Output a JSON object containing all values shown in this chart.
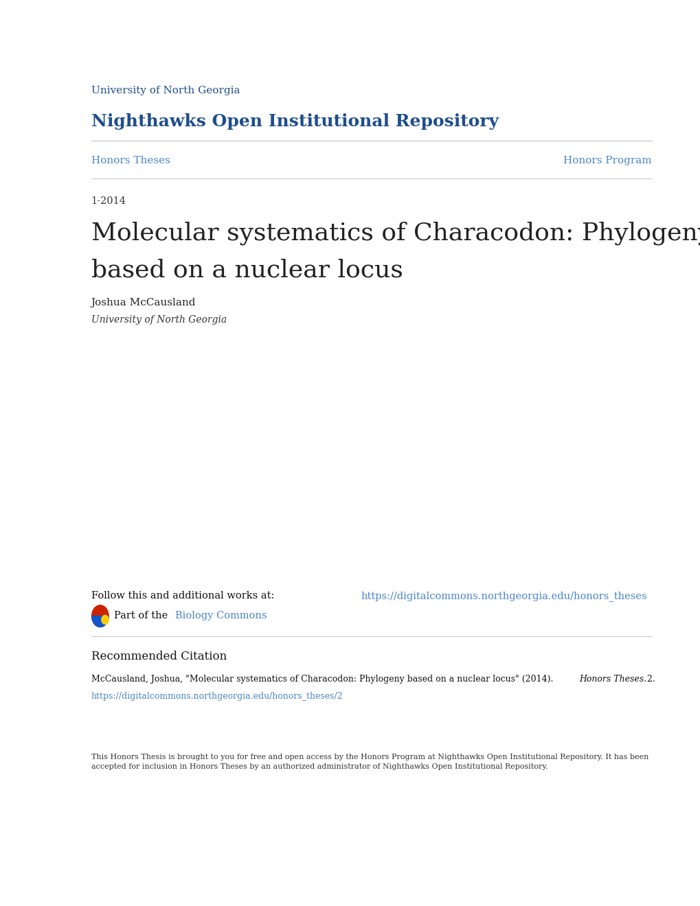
{
  "bg_color": "#ffffff",
  "header_line1": "University of North Georgia",
  "header_line2": "Nighthawks Open Institutional Repository",
  "header_color": "#1f4e8c",
  "nav_left": "Honors Theses",
  "nav_right": "Honors Program",
  "nav_color": "#4a86c8",
  "date": "1-2014",
  "title_line1": "Molecular systematics of Characodon: Phylogeny",
  "title_line2": "based on a nuclear locus",
  "title_color": "#222222",
  "author": "Joshua McCausland",
  "affiliation": "University of North Georgia",
  "follow_text": "Follow this and additional works at: ",
  "follow_link": "https://digitalcommons.northgeorgia.edu/honors_theses",
  "part_text": "Part of the ",
  "part_link": "Biology Commons",
  "rec_citation_heading": "Recommended Citation",
  "rec_citation_body": "McCausland, Joshua, \"Molecular systematics of Characodon: Phylogeny based on a nuclear locus\" (2014). ",
  "rec_citation_italic": "Honors Theses.",
  "rec_citation_num": " 2.",
  "rec_citation_url": "https://digitalcommons.northgeorgia.edu/honors_theses/2",
  "footer_text": "This Honors Thesis is brought to you for free and open access by the Honors Program at Nighthawks Open Institutional Repository. It has been\naccepted for inclusion in Honors Theses by an authorized administrator of Nighthawks Open Institutional Repository.",
  "link_color": "#4a86c8",
  "separator_color": "#cccccc",
  "date_color": "#333333",
  "author_color": "#222222",
  "affiliation_color": "#333333",
  "body_color": "#111111",
  "footer_color": "#333333"
}
